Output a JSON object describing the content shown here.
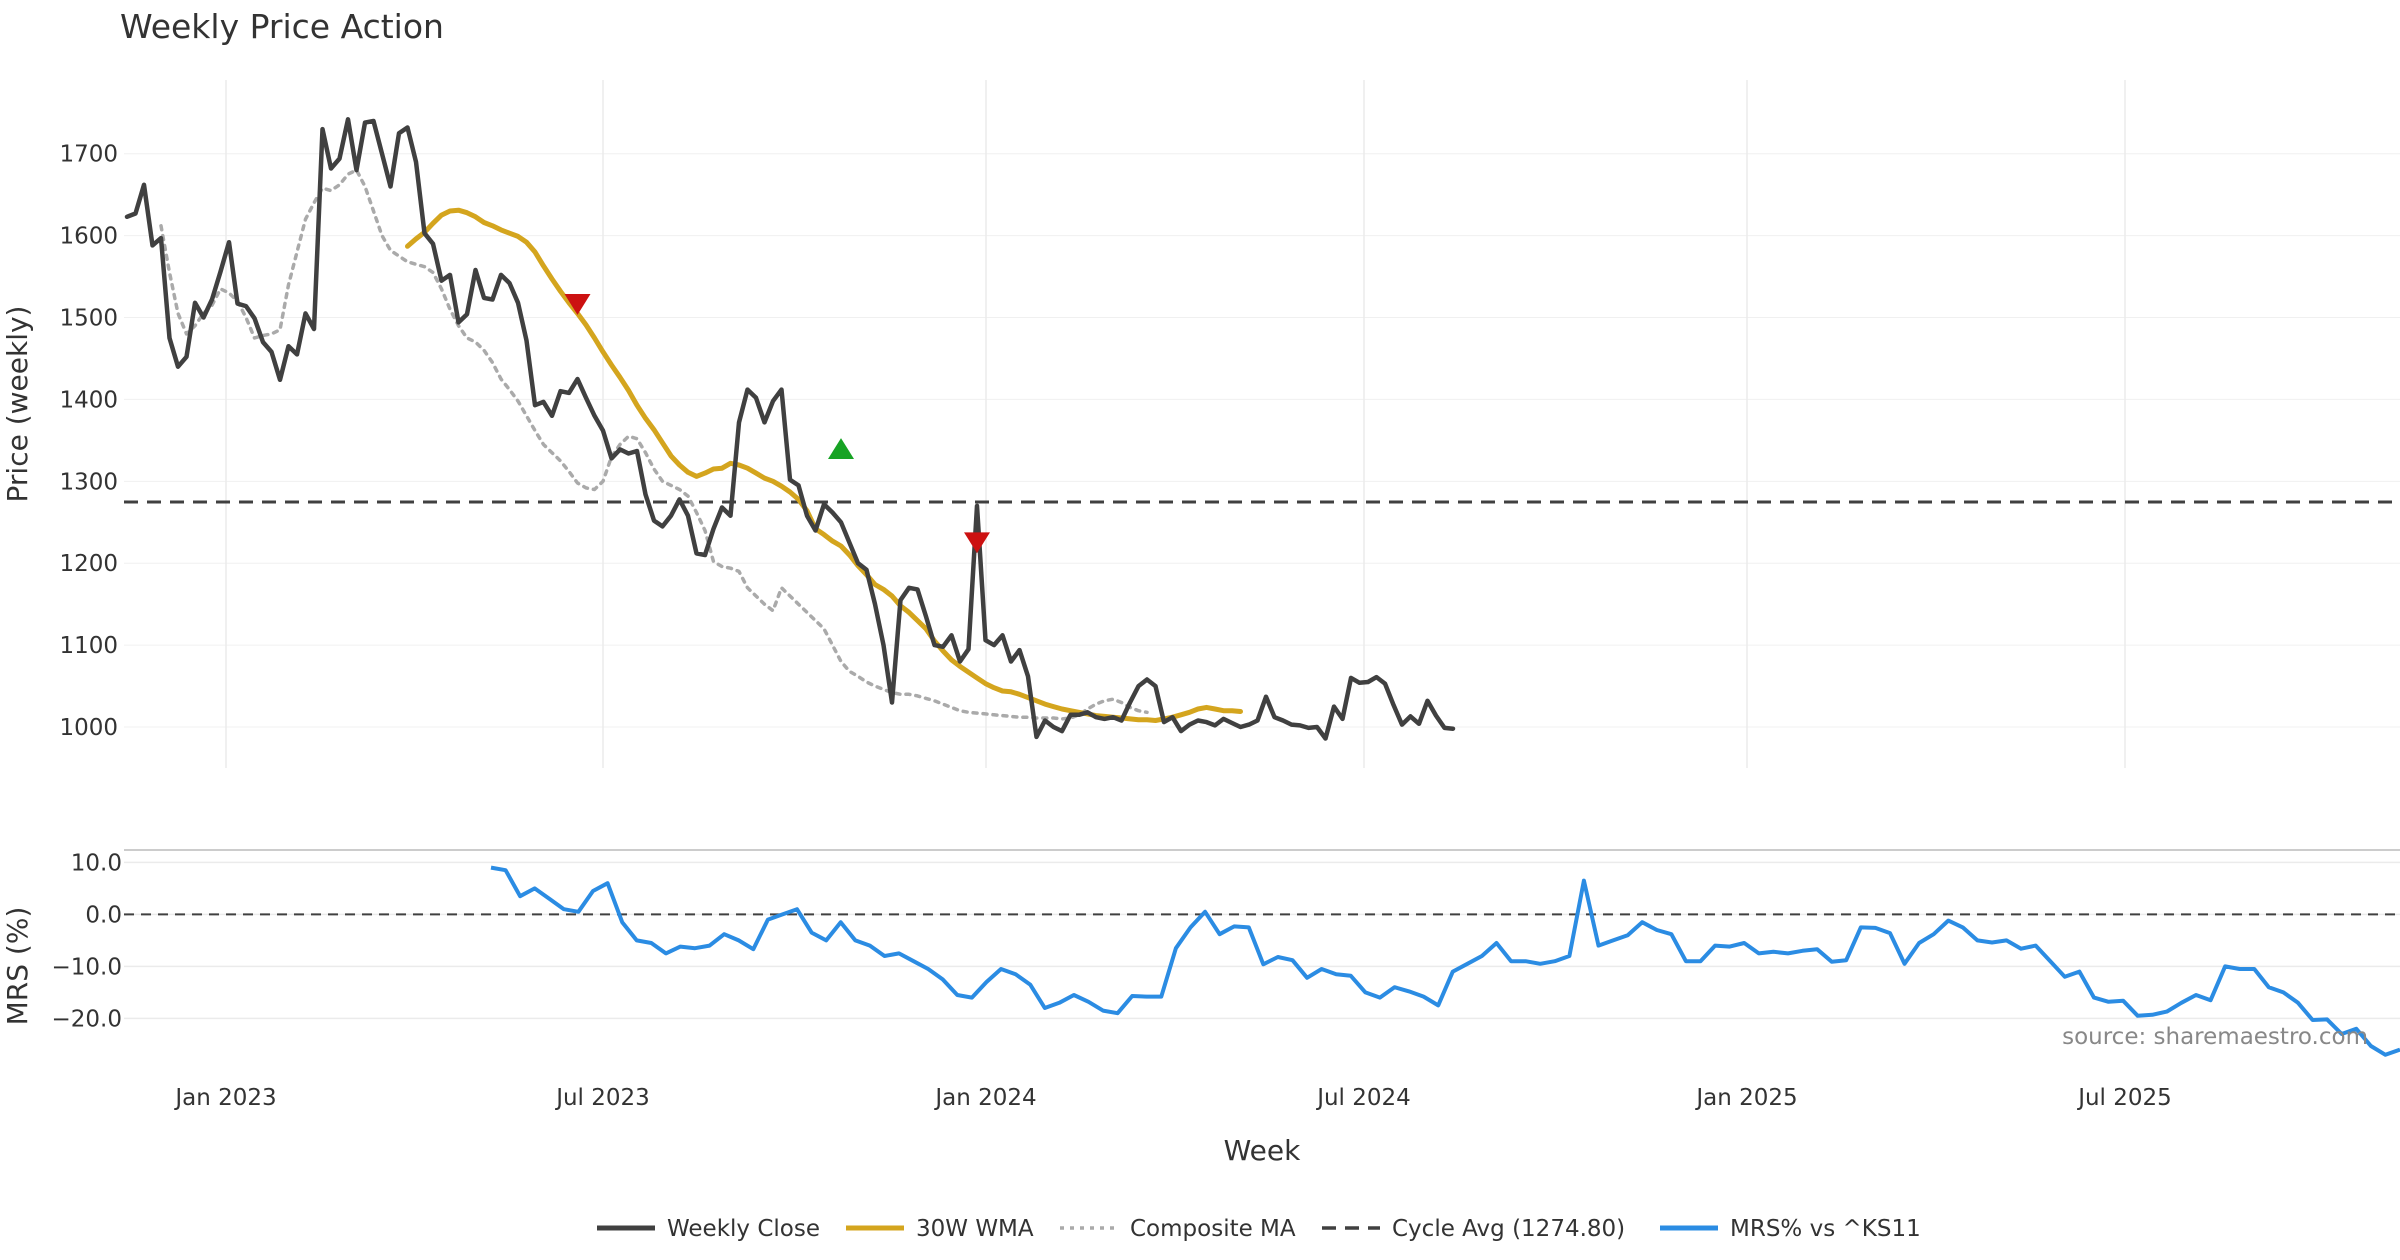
{
  "chart_data": {
    "type": "line",
    "title": "Weekly Price Action",
    "xlabel": "Week",
    "x_tick_labels": [
      "Jan 2023",
      "Jul 2023",
      "Jan 2024",
      "Jul 2024",
      "Jan 2025",
      "Jul 2025"
    ],
    "source": "source: sharemaestro.com",
    "price_panel": {
      "ylabel": "Price (weekly)",
      "ylim": [
        950,
        1790
      ],
      "y_ticks": [
        1000,
        1100,
        1200,
        1300,
        1400,
        1500,
        1600,
        1700
      ],
      "weekly_close": [
        1623,
        1627,
        1662,
        1588,
        1597,
        1475,
        1440,
        1452,
        1518,
        1500,
        1522,
        1556,
        1592,
        1517,
        1514,
        1499,
        1470,
        1458,
        1424,
        1465,
        1455,
        1505,
        1486,
        1730,
        1682,
        1694,
        1742,
        1680,
        1738,
        1740,
        1700,
        1660,
        1725,
        1732,
        1690,
        1603,
        1590,
        1545,
        1552,
        1494,
        1504,
        1558,
        1524,
        1522,
        1552,
        1542,
        1518,
        1472,
        1393,
        1397,
        1380,
        1410,
        1408,
        1425,
        1402,
        1380,
        1362,
        1328,
        1339,
        1334,
        1337,
        1284,
        1252,
        1245,
        1258,
        1278,
        1258,
        1212,
        1210,
        1242,
        1268,
        1258,
        1372,
        1412,
        1402,
        1372,
        1398,
        1412,
        1302,
        1295,
        1258,
        1240,
        1272,
        1262,
        1250,
        1225,
        1200,
        1192,
        1150,
        1100,
        1030,
        1155,
        1170,
        1168,
        1135,
        1100,
        1098,
        1112,
        1080,
        1095,
        1270,
        1106,
        1100,
        1112,
        1080,
        1094,
        1062,
        988,
        1008,
        1000,
        995,
        1015,
        1015,
        1018,
        1012,
        1010,
        1012,
        1008,
        1030,
        1050,
        1058,
        1050,
        1006,
        1012,
        995,
        1003,
        1008,
        1006,
        1002,
        1010,
        1005,
        1000,
        1003,
        1008,
        1037,
        1012,
        1008,
        1003,
        1002,
        999,
        1000,
        986,
        1025,
        1010,
        1060,
        1054,
        1055,
        1061,
        1053,
        1027,
        1003,
        1013,
        1004,
        1032,
        1014,
        999,
        998
      ],
      "wma_30w": [
        1587,
        1596,
        1604,
        1615,
        1625,
        1630,
        1631,
        1628,
        1623,
        1616,
        1612,
        1607,
        1603,
        1599,
        1592,
        1580,
        1563,
        1547,
        1532,
        1518,
        1505,
        1491,
        1475,
        1458,
        1442,
        1427,
        1411,
        1393,
        1377,
        1363,
        1347,
        1331,
        1320,
        1311,
        1306,
        1310,
        1315,
        1316,
        1322,
        1320,
        1316,
        1310,
        1304,
        1300,
        1294,
        1287,
        1278,
        1264,
        1242,
        1235,
        1227,
        1221,
        1210,
        1197,
        1186,
        1174,
        1168,
        1160,
        1148,
        1140,
        1130,
        1120,
        1105,
        1093,
        1082,
        1074,
        1067,
        1060,
        1053,
        1048,
        1044,
        1043,
        1040,
        1036,
        1032,
        1028,
        1025,
        1022,
        1020,
        1018,
        1016,
        1014,
        1013,
        1012,
        1011,
        1010,
        1009,
        1009,
        1008,
        1010,
        1012,
        1015,
        1018,
        1022,
        1024,
        1022,
        1020,
        1020,
        1019
      ],
      "composite_ma": [
        1612,
        1555,
        1505,
        1480,
        1490,
        1505,
        1515,
        1535,
        1530,
        1520,
        1500,
        1475,
        1478,
        1480,
        1485,
        1540,
        1580,
        1620,
        1640,
        1658,
        1655,
        1662,
        1675,
        1680,
        1660,
        1630,
        1600,
        1582,
        1575,
        1568,
        1565,
        1562,
        1555,
        1535,
        1510,
        1490,
        1475,
        1470,
        1460,
        1445,
        1425,
        1412,
        1398,
        1380,
        1362,
        1345,
        1335,
        1325,
        1312,
        1298,
        1292,
        1290,
        1300,
        1330,
        1345,
        1355,
        1352,
        1335,
        1315,
        1300,
        1295,
        1290,
        1282,
        1262,
        1240,
        1202,
        1196,
        1194,
        1190,
        1170,
        1160,
        1150,
        1142,
        1170,
        1160,
        1150,
        1140,
        1130,
        1120,
        1100,
        1080,
        1068,
        1062,
        1055,
        1050,
        1046,
        1042,
        1040,
        1040,
        1038,
        1035,
        1032,
        1028,
        1024,
        1020,
        1018,
        1017,
        1016,
        1015,
        1014,
        1013,
        1012,
        1012,
        1011,
        1011,
        1011,
        1010,
        1011,
        1015,
        1022,
        1028,
        1032,
        1034,
        1030,
        1024,
        1020,
        1018
      ],
      "cycle_avg": 1274.8,
      "markers": [
        {
          "type": "sell",
          "color": "#cc1111",
          "value": 1516
        },
        {
          "type": "buy",
          "color": "#17a324",
          "value": 1340
        },
        {
          "type": "sell",
          "color": "#cc1111",
          "value": 1225
        }
      ]
    },
    "mrs_panel": {
      "ylabel": "MRS (%)",
      "ylim": [
        -28,
        12
      ],
      "y_ticks": [
        10.0,
        0.0,
        -10.0,
        -20.0
      ],
      "y_tick_labels": [
        "10.0",
        "0.0",
        "−10.0",
        "−20.0"
      ],
      "mrs": [
        9,
        8.5,
        3.5,
        5,
        3,
        1,
        0.5,
        4.5,
        6,
        -1.5,
        -5,
        -5.5,
        -7.5,
        -6.2,
        -6.5,
        -6,
        -3.8,
        -5,
        -6.7,
        -1,
        0,
        1,
        -3.5,
        -5,
        -1.5,
        -5,
        -6,
        -8,
        -7.5,
        -9,
        -10.5,
        -12.5,
        -15.5,
        -16,
        -13,
        -10.5,
        -11.5,
        -13.5,
        -18,
        -17,
        -15.5,
        -16.8,
        -18.5,
        -19,
        -15.7,
        -15.8,
        -15.8,
        -6.5,
        -2.5,
        0.5,
        -3.8,
        -2.3,
        -2.5,
        -9.6,
        -8.2,
        -8.8,
        -12.2,
        -10.5,
        -11.5,
        -11.8,
        -15,
        -16,
        -14,
        -14.8,
        -15.8,
        -17.5,
        -11,
        -9.5,
        -8,
        -5.5,
        -9,
        -9,
        -9.5,
        -9,
        -8,
        6.5,
        -6,
        -5,
        -4,
        -1.5,
        -3,
        -3.8,
        -9,
        -9,
        -6,
        -6.2,
        -5.5,
        -7.5,
        -7.2,
        -7.5,
        -7,
        -6.7,
        -9.1,
        -8.8,
        -2.5,
        -2.6,
        -3.6,
        -9.5,
        -5.5,
        -3.8,
        -1.2,
        -2.5,
        -5,
        -5.4,
        -5,
        -6.6,
        -6,
        -9,
        -12,
        -11,
        -16,
        -16.8,
        -16.6,
        -19.5,
        -19.3,
        -18.7,
        -17,
        -15.5,
        -16.5,
        -10,
        -10.5,
        -10.5,
        -14,
        -15,
        -17,
        -20.3,
        -20.2,
        -23,
        -22,
        -25.3,
        -27,
        -26
      ]
    },
    "legend": [
      {
        "label": "Weekly Close",
        "color": "#404040",
        "style": "solid"
      },
      {
        "label": "30W WMA",
        "color": "#d4a51e",
        "style": "solid"
      },
      {
        "label": "Composite MA",
        "color": "#aaaaaa",
        "style": "dotted"
      },
      {
        "label": "Cycle Avg (1274.80)",
        "color": "#404040",
        "style": "dashed"
      },
      {
        "label": "MRS% vs ^KS11",
        "color": "#2b8ce3",
        "style": "solid"
      }
    ]
  }
}
